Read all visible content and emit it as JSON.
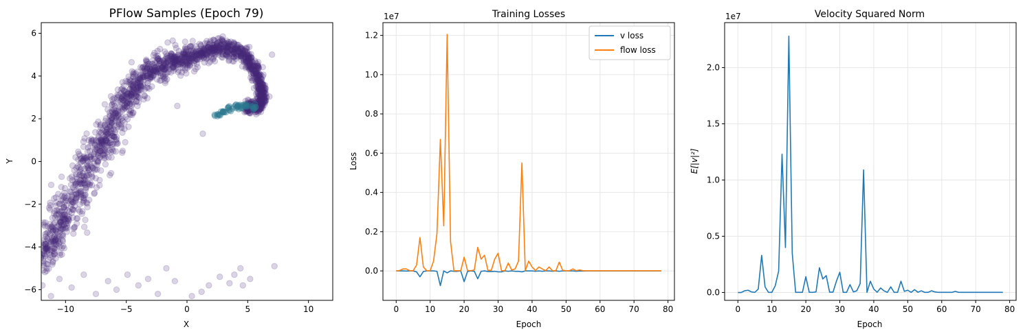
{
  "chart_data": [
    {
      "type": "scatter",
      "title": "PFlow Samples (Epoch 79)",
      "xlabel": "X",
      "ylabel": "Y",
      "xlim": [
        -12,
        12
      ],
      "ylim": [
        -6.5,
        6.5
      ],
      "xticks": [
        -10,
        -5,
        0,
        5,
        10
      ],
      "yticks": [
        -6,
        -4,
        -2,
        0,
        2,
        4,
        6
      ],
      "grid": false,
      "point_color": "#482878",
      "accent_color": "#2a788e",
      "point_opacity": 0.2,
      "series": [
        {
          "values": [
            [
              -11.8,
              -4.6
            ],
            [
              -11.5,
              -4.1
            ],
            [
              -11.2,
              -3.7
            ],
            [
              -10.8,
              -3.4
            ],
            [
              -10.4,
              -3.0
            ],
            [
              -10.0,
              -2.6
            ],
            [
              -9.6,
              -2.1
            ],
            [
              -9.2,
              -1.6
            ],
            [
              -8.8,
              -1.1
            ],
            [
              -8.4,
              -0.6
            ],
            [
              -8.0,
              -0.2
            ],
            [
              -7.6,
              0.3
            ],
            [
              -7.2,
              0.7
            ],
            [
              -6.8,
              1.1
            ],
            [
              -6.4,
              1.5
            ],
            [
              -6.0,
              1.9
            ],
            [
              -5.6,
              2.3
            ],
            [
              -5.2,
              2.7
            ],
            [
              -4.8,
              3.1
            ],
            [
              -4.4,
              3.4
            ],
            [
              -4.0,
              3.7
            ],
            [
              -3.5,
              4.0
            ],
            [
              -3.0,
              4.2
            ],
            [
              -2.5,
              4.4
            ],
            [
              -2.0,
              4.5
            ],
            [
              -1.5,
              4.6
            ],
            [
              -1.0,
              4.7
            ],
            [
              -0.5,
              4.7
            ],
            [
              0.0,
              4.8
            ],
            [
              0.5,
              4.9
            ],
            [
              1.0,
              5.0
            ],
            [
              1.5,
              5.1
            ],
            [
              2.0,
              5.2
            ],
            [
              2.5,
              5.3
            ],
            [
              3.0,
              5.3
            ],
            [
              3.5,
              5.3
            ],
            [
              4.0,
              5.2
            ],
            [
              4.5,
              5.1
            ],
            [
              5.0,
              4.9
            ],
            [
              5.3,
              4.6
            ],
            [
              5.6,
              4.3
            ],
            [
              5.8,
              4.0
            ],
            [
              6.0,
              3.7
            ],
            [
              6.1,
              3.4
            ],
            [
              6.2,
              3.1
            ],
            [
              6.2,
              2.9
            ],
            [
              6.1,
              2.7
            ],
            [
              5.8,
              2.6
            ],
            [
              5.4,
              2.5
            ],
            [
              5.0,
              2.5
            ]
          ],
          "spread": [
            0.9,
            0.9,
            0.9,
            0.9,
            1.0,
            1.0,
            1.0,
            1.0,
            1.0,
            1.0,
            1.0,
            1.0,
            0.9,
            0.9,
            0.9,
            0.8,
            0.8,
            0.8,
            0.7,
            0.7,
            0.7,
            0.6,
            0.6,
            0.6,
            0.6,
            0.5,
            0.5,
            0.5,
            0.5,
            0.5,
            0.4,
            0.4,
            0.4,
            0.4,
            0.4,
            0.4,
            0.4,
            0.4,
            0.4,
            0.4,
            0.4,
            0.4,
            0.3,
            0.3,
            0.3,
            0.3,
            0.3,
            0.3,
            0.3,
            0.3
          ],
          "points_per_anchor": 38
        }
      ],
      "outliers": [
        [
          -11.9,
          -5.8
        ],
        [
          -11.2,
          -6.3
        ],
        [
          -10.5,
          -5.5
        ],
        [
          -9.5,
          -5.9
        ],
        [
          -8.5,
          -5.3
        ],
        [
          -7.5,
          -6.2
        ],
        [
          -6.5,
          -5.6
        ],
        [
          -5.8,
          -6.0
        ],
        [
          -4.9,
          -5.3
        ],
        [
          -4.0,
          -5.8
        ],
        [
          -3.2,
          -5.5
        ],
        [
          -2.4,
          -6.2
        ],
        [
          -1.7,
          -5.0
        ],
        [
          -1.0,
          -5.6
        ],
        [
          0.4,
          -6.3
        ],
        [
          1.2,
          -6.1
        ],
        [
          1.8,
          -5.8
        ],
        [
          2.7,
          -5.4
        ],
        [
          3.5,
          -5.7
        ],
        [
          3.9,
          -5.3
        ],
        [
          4.4,
          -5.0
        ],
        [
          4.6,
          -5.8
        ],
        [
          5.2,
          -5.5
        ],
        [
          7.2,
          -4.9
        ],
        [
          1.3,
          1.3
        ],
        [
          -0.8,
          2.6
        ],
        [
          -5.3,
          0.5
        ],
        [
          7.0,
          5.0
        ]
      ],
      "highlight": {
        "values": [
          [
            2.5,
            2.2
          ],
          [
            3.0,
            2.35
          ],
          [
            3.5,
            2.45
          ],
          [
            4.0,
            2.55
          ],
          [
            4.5,
            2.6
          ],
          [
            5.0,
            2.62
          ],
          [
            5.5,
            2.55
          ]
        ],
        "points_per_anchor": 8
      }
    },
    {
      "type": "line",
      "title": "Training Losses",
      "xlabel": "Epoch",
      "ylabel": "Loss",
      "scale_label": "1e7",
      "xlim": [
        -3.9,
        81.9
      ],
      "ylim": [
        -1500000,
        12650000
      ],
      "xticks": [
        0,
        10,
        20,
        30,
        40,
        50,
        60,
        70,
        80
      ],
      "yticks": [
        0,
        2000000,
        4000000,
        6000000,
        8000000,
        10000000,
        12000000
      ],
      "ytick_labels": [
        "0.0",
        "0.2",
        "0.4",
        "0.6",
        "0.8",
        "1.0",
        "1.2"
      ],
      "grid": true,
      "legend": "top-right",
      "series": [
        {
          "name": "v loss",
          "color": "#1f77b4",
          "values": [
            0,
            0,
            0,
            -10000,
            0,
            0,
            -50000,
            -300000,
            -30000,
            0,
            0,
            0,
            -20000,
            -750000,
            0,
            -100000,
            0,
            -20000,
            -20000,
            0,
            -550000,
            -30000,
            0,
            -20000,
            -400000,
            -20000,
            0,
            -30000,
            -30000,
            -20000,
            -50000,
            -50000,
            0,
            -20000,
            0,
            -20000,
            -20000,
            -50000,
            0,
            0,
            0,
            -20000,
            0,
            -20000,
            0,
            0,
            -20000,
            0,
            -20000,
            0,
            0,
            0,
            0,
            -20000,
            0,
            -10000,
            0,
            0,
            0,
            0,
            0,
            0,
            0,
            0,
            0,
            0,
            0,
            0,
            0,
            0,
            0,
            0,
            0,
            0,
            0,
            0,
            0,
            0,
            0
          ]
        },
        {
          "name": "flow loss",
          "color": "#ff7f0e",
          "values": [
            0,
            20000,
            100000,
            100000,
            10000,
            10000,
            300000,
            1700000,
            200000,
            10000,
            10000,
            500000,
            1900000,
            6700000,
            2300000,
            12050000,
            1500000,
            10000,
            10000,
            10000,
            700000,
            20000,
            10000,
            50000,
            1200000,
            600000,
            800000,
            30000,
            30000,
            600000,
            900000,
            10000,
            10000,
            400000,
            50000,
            100000,
            500000,
            5500000,
            10000,
            500000,
            200000,
            20000,
            200000,
            100000,
            10000,
            200000,
            10000,
            10000,
            450000,
            30000,
            10000,
            10000,
            100000,
            10000,
            50000,
            10000,
            10000,
            10000,
            10000,
            10000,
            10000,
            10000,
            10000,
            10000,
            10000,
            10000,
            10000,
            10000,
            10000,
            10000,
            10000,
            10000,
            10000,
            10000,
            10000,
            10000,
            10000,
            10000,
            10000
          ]
        }
      ]
    },
    {
      "type": "line",
      "title": "Velocity Squared Norm",
      "xlabel": "Epoch",
      "ylabel": "E[|v|²]",
      "scale_label": "1e7",
      "xlim": [
        -3.9,
        81.9
      ],
      "ylim": [
        -700000,
        24000000
      ],
      "xticks": [
        0,
        10,
        20,
        30,
        40,
        50,
        60,
        70,
        80
      ],
      "yticks": [
        0,
        5000000,
        10000000,
        15000000,
        20000000
      ],
      "ytick_labels": [
        "0.0",
        "0.5",
        "1.0",
        "1.5",
        "2.0"
      ],
      "grid": true,
      "series": [
        {
          "color": "#1f77b4",
          "values": [
            0,
            0,
            150000,
            200000,
            50000,
            10000,
            300000,
            3300000,
            500000,
            10000,
            10000,
            600000,
            1900000,
            12300000,
            4000000,
            22800000,
            3500000,
            10000,
            10000,
            10000,
            1400000,
            20000,
            10000,
            50000,
            2200000,
            1200000,
            1500000,
            30000,
            30000,
            1000000,
            1800000,
            10000,
            10000,
            700000,
            50000,
            150000,
            800000,
            10900000,
            10000,
            1000000,
            300000,
            20000,
            400000,
            150000,
            10000,
            500000,
            10000,
            10000,
            1000000,
            100000,
            200000,
            10000,
            250000,
            20000,
            150000,
            10000,
            10000,
            150000,
            50000,
            10000,
            10000,
            10000,
            10000,
            10000,
            100000,
            10000,
            10000,
            10000,
            10000,
            10000,
            10000,
            10000,
            10000,
            10000,
            10000,
            10000,
            10000,
            10000,
            10000
          ]
        }
      ]
    }
  ]
}
